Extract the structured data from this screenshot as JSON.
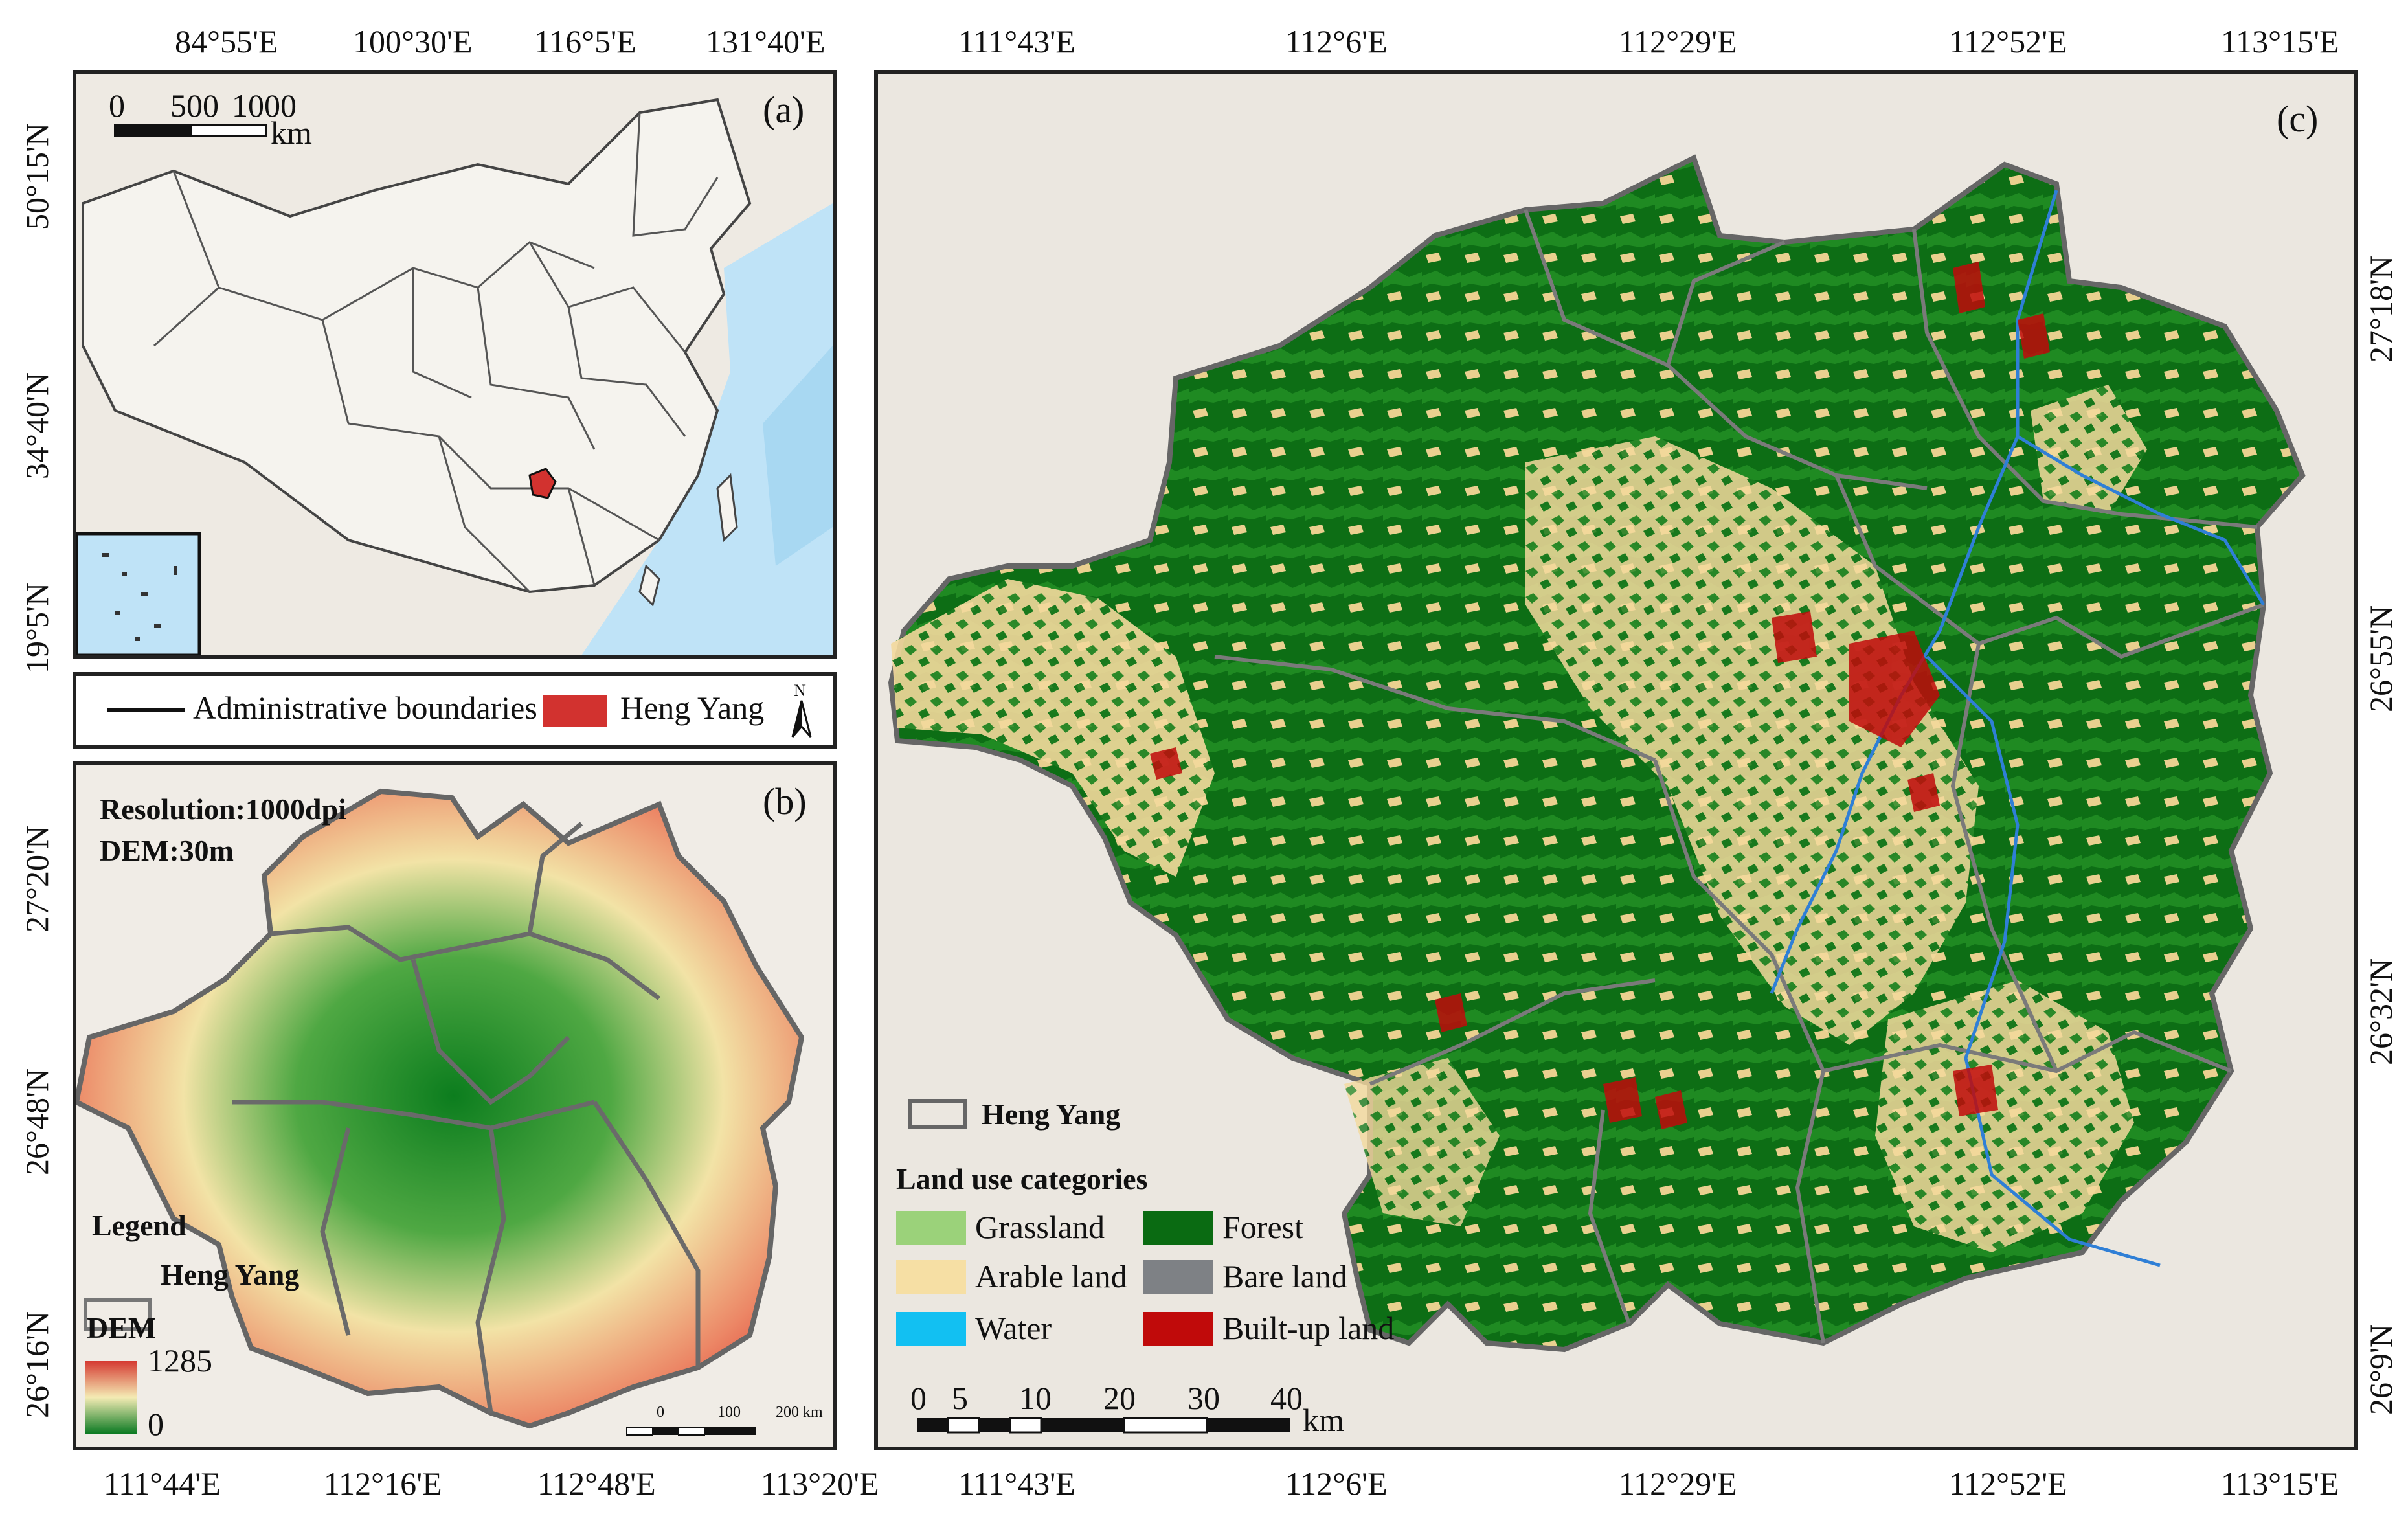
{
  "panel_a": {
    "label": "(a)",
    "top_ticks": [
      "84°55'E",
      "100°30'E",
      "116°5'E",
      "131°40'E"
    ],
    "left_ticks": [
      "50°15'N",
      "34°40'N",
      "19°5'N"
    ],
    "scalebar": {
      "ticks": [
        "0",
        "500",
        "1000"
      ],
      "unit": "km"
    }
  },
  "legend_a": {
    "boundary_label": "Administrative boundaries",
    "region_label": "Heng Yang",
    "north": "N"
  },
  "panel_b": {
    "label": "(b)",
    "info_lines": [
      "Resolution:1000dpi",
      "DEM:30m"
    ],
    "left_ticks": [
      "27°20'N",
      "26°48'N",
      "26°16'N"
    ],
    "bottom_ticks": [
      "111°44'E",
      "112°16'E",
      "112°48'E",
      "113°20'E"
    ],
    "legend_title": "Legend",
    "legend_region": "Heng Yang",
    "dem_title": "DEM",
    "dem_max": "1285",
    "dem_min": "0",
    "scalebar": {
      "ticks": [
        "0",
        "100",
        "200 km"
      ]
    }
  },
  "panel_c": {
    "label": "(c)",
    "top_ticks": [
      "111°43'E",
      "112°6'E",
      "112°29'E",
      "112°52'E",
      "113°15'E"
    ],
    "bottom_ticks": [
      "111°43'E",
      "112°6'E",
      "112°29'E",
      "112°52'E",
      "113°15'E"
    ],
    "right_ticks": [
      "27°18'N",
      "26°55'N",
      "26°32'N",
      "26°9'N"
    ],
    "legend_region": "Heng Yang",
    "legend_title": "Land use categories",
    "categories": [
      {
        "label": "Grassland",
        "color": "#9bd27a"
      },
      {
        "label": "Forest",
        "color": "#0a6b12"
      },
      {
        "label": "Arable land",
        "color": "#f6dfa4"
      },
      {
        "label": "Bare land",
        "color": "#7e8185"
      },
      {
        "label": "Water",
        "color": "#12c0f2"
      },
      {
        "label": "Built-up land",
        "color": "#c00a0a"
      }
    ],
    "scalebar": {
      "ticks": [
        "0",
        "5",
        "10",
        "20",
        "30",
        "40"
      ],
      "unit": "km"
    }
  }
}
